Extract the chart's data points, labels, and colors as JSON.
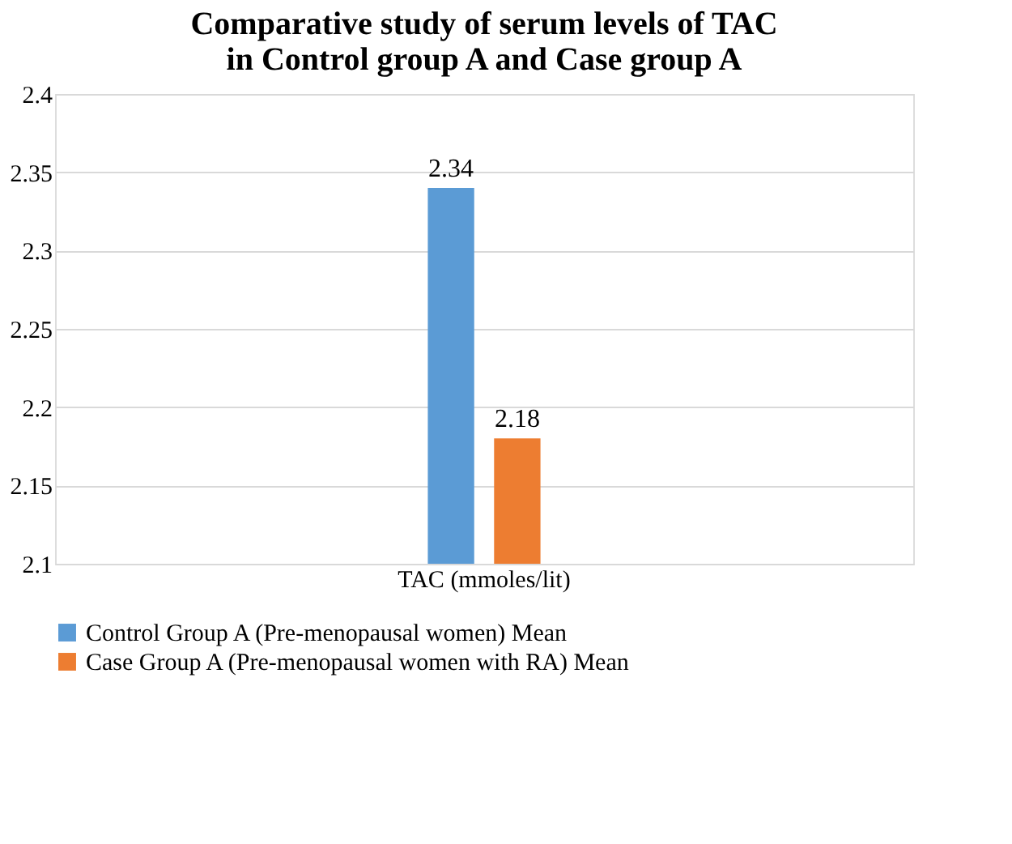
{
  "chart_data": {
    "type": "bar",
    "title": "Comparative study of serum levels of TAC\nin Control group A and Case group A",
    "categories": [
      "TAC (mmoles/lit)"
    ],
    "series": [
      {
        "name": "Control Group A (Pre-menopausal women) Mean",
        "color": "#5b9bd5",
        "values": [
          2.34
        ]
      },
      {
        "name": "Case Group A (Pre-menopausal women with RA) Mean",
        "color": "#ed7d31",
        "values": [
          2.18
        ]
      }
    ],
    "ylim": [
      2.1,
      2.4
    ],
    "yticks": [
      2.1,
      2.15,
      2.2,
      2.25,
      2.3,
      2.35,
      2.4
    ],
    "grid": "y",
    "legend": "bottom",
    "data_labels": true
  }
}
